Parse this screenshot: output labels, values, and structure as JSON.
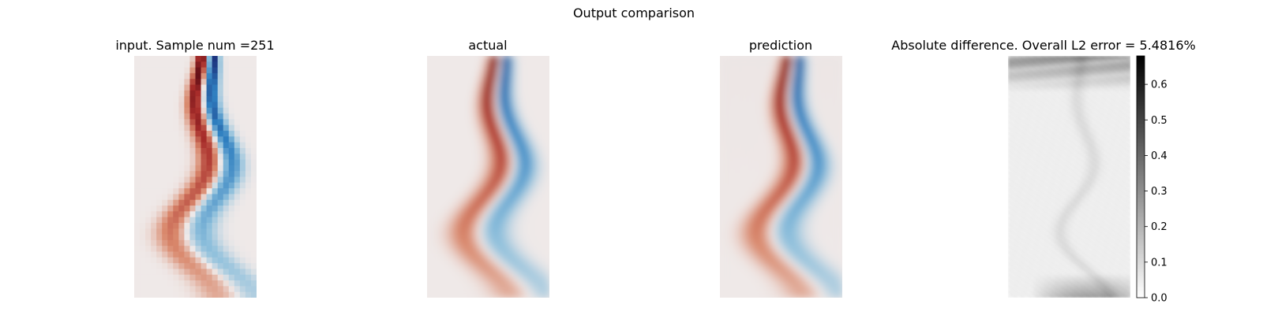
{
  "figure": {
    "title": "Output comparison"
  },
  "chart_data": [
    {
      "type": "heatmap",
      "title": "input. Sample num =251",
      "colormap": "diverging red-white-blue",
      "grid": false,
      "axes_visible": false,
      "resolution": "coarse"
    },
    {
      "type": "heatmap",
      "title": "actual",
      "colormap": "diverging red-white-blue",
      "grid": false,
      "axes_visible": false,
      "resolution": "fine"
    },
    {
      "type": "heatmap",
      "title": "prediction",
      "colormap": "diverging red-white-blue",
      "grid": false,
      "axes_visible": false,
      "resolution": "fine"
    },
    {
      "type": "heatmap",
      "title": "Absolute difference. Overall L2 error = 5.4816%",
      "colormap": "greys",
      "grid": false,
      "axes_visible": false,
      "colorbar": {
        "range": [
          0.0,
          0.68
        ],
        "ticks": [
          0.0,
          0.1,
          0.2,
          0.3,
          0.4,
          0.5,
          0.6
        ],
        "tick_labels": [
          "0.0",
          "0.1",
          "0.2",
          "0.3",
          "0.4",
          "0.5",
          "0.6"
        ]
      }
    }
  ],
  "colors": {
    "red_dark": "#5a0a14",
    "red": "#a82d2a",
    "red_light": "#d9886c",
    "neutral": "#efe9e8",
    "blue_light": "#8fc0dc",
    "blue": "#2f7fc0",
    "blue_dark": "#1a2f7a"
  }
}
